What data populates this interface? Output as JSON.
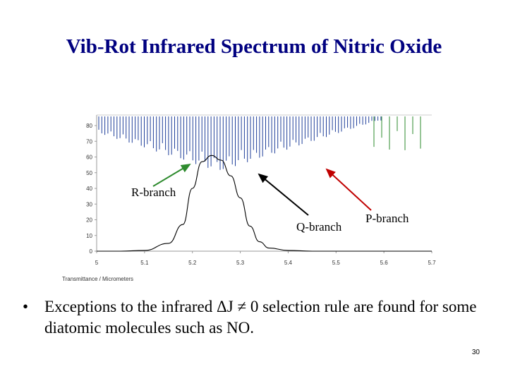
{
  "slide": {
    "title": "Vib-Rot Infrared Spectrum of Nitric Oxide",
    "bullet_marker": "•",
    "bullet_text": "Exceptions to the infrared ΔJ ≠ 0 selection rule are found for some diatomic molecules such as NO.",
    "slide_number": "30"
  },
  "chart_data": {
    "type": "line",
    "title": "",
    "xlabel": "Transmittance / Micrometers",
    "ylabel": "",
    "xlim": [
      5.0,
      5.7
    ],
    "ylim": [
      0,
      80
    ],
    "x_ticks": [
      "5",
      "5.1",
      "5.2",
      "5.3",
      "5.4",
      "5.5",
      "5.6",
      "5.7"
    ],
    "y_ticks": [
      "0",
      "10",
      "20",
      "30",
      "40",
      "50",
      "60",
      "70",
      "80"
    ],
    "grid": false,
    "colors": {
      "r_branch_lines": "#1f3f9a",
      "p_branch_lines": "#1f3f9a",
      "p_weak_lines": "#2e8b2e",
      "band_envelope": "#000000",
      "r_arrow": "#2e8b2e",
      "q_arrow": "#000000",
      "p_arrow": "#c00000"
    },
    "series": [
      {
        "x": [
          5.0,
          5.05,
          5.1,
          5.15,
          5.18,
          5.2,
          5.22,
          5.24,
          5.26,
          5.28,
          5.3,
          5.32,
          5.34,
          5.36,
          5.4,
          5.45,
          5.5,
          5.55,
          5.6,
          5.65,
          5.7
        ],
        "values": [
          0,
          0,
          0.5,
          5,
          17,
          40,
          57,
          61,
          58,
          48,
          34,
          16,
          6,
          2,
          0.5,
          0,
          0,
          0,
          0,
          0,
          0
        ]
      }
    ],
    "annotations": [
      {
        "text": "R-branch",
        "points_to": "R branch lines"
      },
      {
        "text": "Q-branch",
        "points_to": "Q branch band center"
      },
      {
        "text": "P-branch",
        "points_to": "P branch lines"
      }
    ]
  }
}
